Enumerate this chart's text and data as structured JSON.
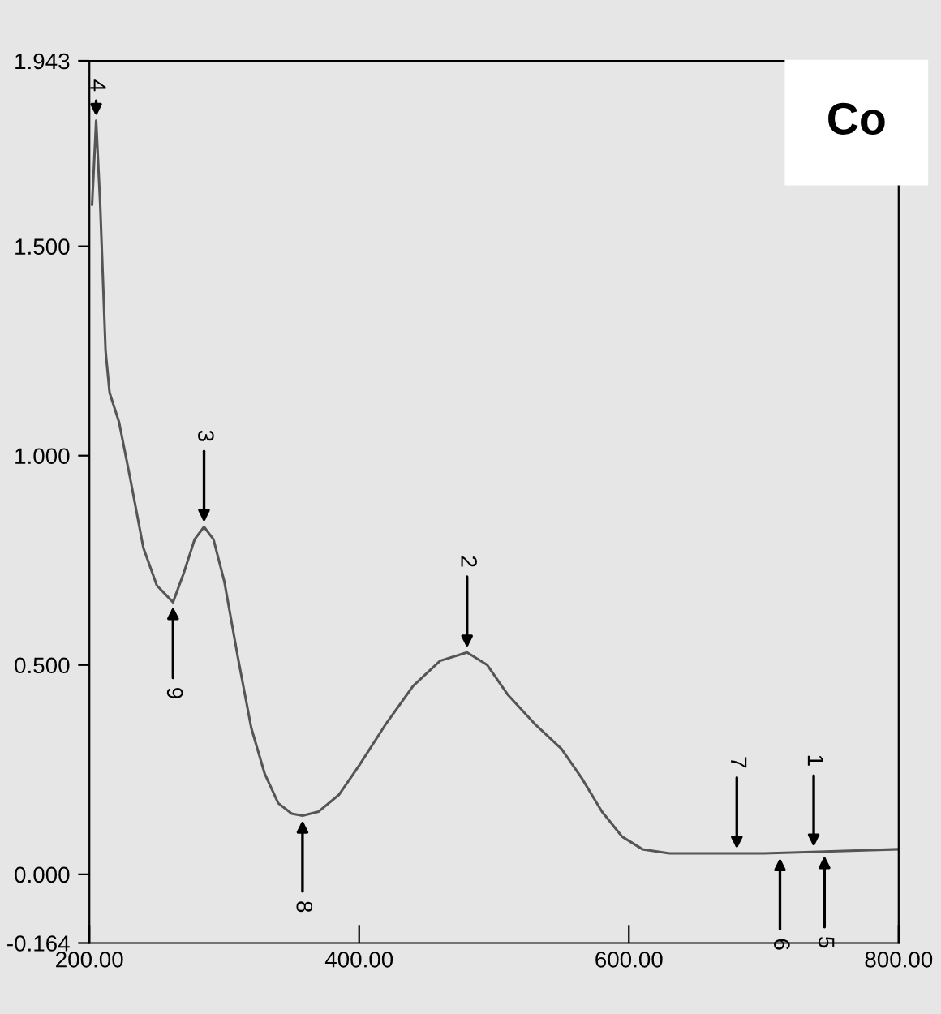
{
  "chart_data": {
    "type": "line",
    "x": [
      202,
      205,
      208,
      212,
      215,
      222,
      230,
      240,
      250,
      262,
      270,
      278,
      285,
      292,
      300,
      310,
      320,
      330,
      340,
      350,
      358,
      370,
      385,
      400,
      420,
      440,
      460,
      480,
      495,
      510,
      530,
      550,
      565,
      580,
      595,
      610,
      630,
      660,
      700,
      750,
      800
    ],
    "series": [
      {
        "color": "#555555",
        "values": [
          1.6,
          1.8,
          1.6,
          1.25,
          1.15,
          1.08,
          0.95,
          0.78,
          0.69,
          0.65,
          0.72,
          0.8,
          0.83,
          0.8,
          0.7,
          0.52,
          0.35,
          0.24,
          0.17,
          0.145,
          0.14,
          0.15,
          0.19,
          0.26,
          0.36,
          0.45,
          0.51,
          0.53,
          0.5,
          0.43,
          0.36,
          0.3,
          0.23,
          0.15,
          0.09,
          0.06,
          0.05,
          0.05,
          0.05,
          0.055,
          0.06
        ]
      }
    ],
    "xlim": [
      200,
      800
    ],
    "xticks": [
      {
        "value": 200,
        "label": "200.00"
      },
      {
        "value": 400,
        "label": "400.00"
      },
      {
        "value": 600,
        "label": "600.00"
      },
      {
        "value": 800,
        "label": "800.00"
      }
    ],
    "ylim": [
      -0.164,
      1.943
    ],
    "yticks": [
      {
        "value": -0.164,
        "label": "-0.164"
      },
      {
        "value": 0,
        "label": "0.000"
      },
      {
        "value": 0.5,
        "label": "0.500"
      },
      {
        "value": 1,
        "label": "1.000"
      },
      {
        "value": 1.5,
        "label": "1.500"
      },
      {
        "value": 1.943,
        "label": "1.943"
      }
    ],
    "grid": false,
    "legend": false,
    "annotations": [
      "Co",
      {
        "text": "1",
        "x": 737,
        "y": 0.055
      },
      {
        "text": "2",
        "x": 480,
        "y": 0.53
      },
      {
        "text": "3",
        "x": 285,
        "y": 0.83
      },
      {
        "text": "4",
        "x": 205,
        "y": 1.8
      },
      {
        "text": "5",
        "x": 745,
        "y": 0.055
      },
      {
        "text": "6",
        "x": 712,
        "y": 0.05
      },
      {
        "text": "7",
        "x": 680,
        "y": 0.05
      },
      {
        "text": "8",
        "x": 358,
        "y": 0.14
      },
      {
        "text": "9",
        "x": 262,
        "y": 0.65
      }
    ]
  }
}
